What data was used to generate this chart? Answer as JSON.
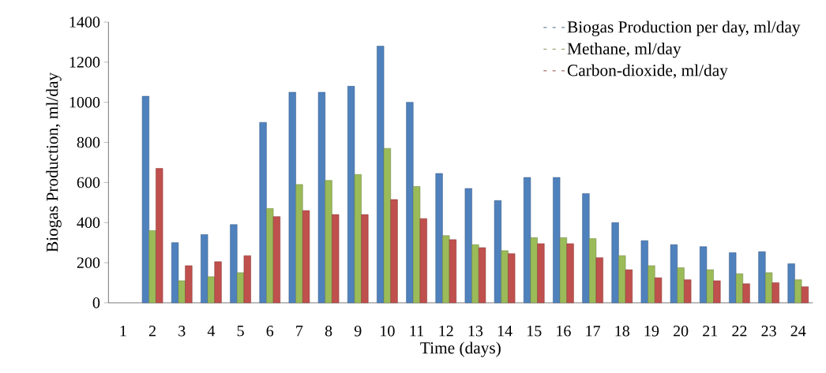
{
  "chart_data": {
    "type": "bar",
    "xlabel": "Time (days)",
    "ylabel": "Biogas  Production, ml/day",
    "categories": [
      "1",
      "2",
      "3",
      "4",
      "5",
      "6",
      "7",
      "8",
      "9",
      "10",
      "11",
      "12",
      "13",
      "14",
      "15",
      "16",
      "17",
      "18",
      "19",
      "20",
      "21",
      "22",
      "23",
      "24"
    ],
    "series": [
      {
        "name": "Biogas Production per day, ml/day",
        "color": "#4f81bd",
        "values": [
          null,
          1030,
          300,
          340,
          390,
          900,
          1050,
          1050,
          1080,
          1280,
          1000,
          645,
          570,
          510,
          625,
          625,
          545,
          400,
          310,
          290,
          280,
          250,
          255,
          195
        ]
      },
      {
        "name": "Methane, ml/day",
        "color": "#9bbb59",
        "values": [
          null,
          360,
          110,
          130,
          150,
          470,
          590,
          610,
          640,
          770,
          580,
          335,
          290,
          260,
          325,
          325,
          320,
          235,
          185,
          175,
          165,
          145,
          150,
          115
        ]
      },
      {
        "name": "Carbon-dioxide, ml/day",
        "color": "#c0504d",
        "values": [
          null,
          670,
          185,
          205,
          235,
          430,
          460,
          440,
          440,
          515,
          420,
          315,
          275,
          245,
          295,
          295,
          225,
          165,
          125,
          115,
          110,
          95,
          100,
          80
        ]
      }
    ],
    "ylim": [
      0,
      1400
    ],
    "yticks": [
      0,
      200,
      400,
      600,
      800,
      1000,
      1200,
      1400
    ],
    "grid": false,
    "legend": "top right"
  }
}
